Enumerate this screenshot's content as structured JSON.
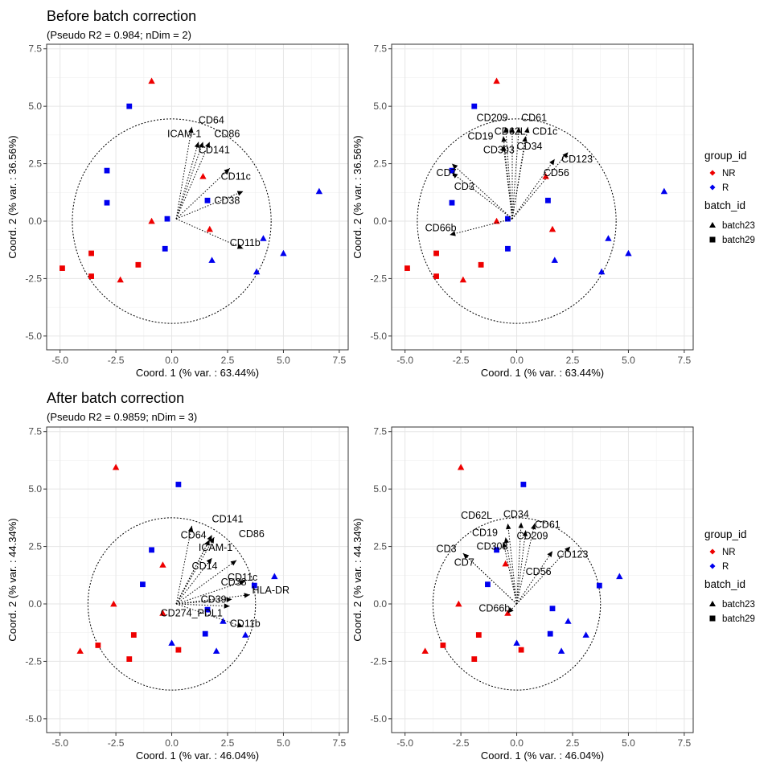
{
  "sections": [
    {
      "title": "Before batch correction",
      "subtitle": "(Pseudo R2 = 0.984; nDim = 2)"
    },
    {
      "title": "After batch correction",
      "subtitle": "(Pseudo R2 = 0.9859; nDim = 3)"
    }
  ],
  "legend": {
    "group_title": "group_id",
    "group_items": [
      {
        "label": "NR",
        "color": "#ee0000"
      },
      {
        "label": "R",
        "color": "#0000ee"
      }
    ],
    "batch_title": "batch_id",
    "batch_items": [
      {
        "label": "batch23",
        "shape": "triangle"
      },
      {
        "label": "batch29",
        "shape": "square"
      }
    ]
  },
  "chart_data": [
    {
      "type": "scatter",
      "xlabel": "Coord. 1 (% var. : 63.44%)",
      "ylabel": "Coord. 2 (% var. : 36.56%)",
      "xlim": [
        -5.6,
        7.9
      ],
      "ylim": [
        -5.6,
        7.7
      ],
      "xticks": [
        -5.0,
        -2.5,
        0.0,
        2.5,
        5.0,
        7.5
      ],
      "yticks": [
        -5.0,
        -2.5,
        0.0,
        2.5,
        5.0,
        7.5
      ],
      "circle": {
        "cx": 0,
        "cy": 0,
        "r": 4.45
      },
      "origin": [
        0.2,
        0.1
      ],
      "points": [
        [
          -0.9,
          6.1,
          "NR",
          "batch23"
        ],
        [
          -1.9,
          5.0,
          "R",
          "batch29"
        ],
        [
          -2.9,
          2.2,
          "R",
          "batch29"
        ],
        [
          -2.9,
          0.8,
          "R",
          "batch29"
        ],
        [
          -0.9,
          0.0,
          "NR",
          "batch23"
        ],
        [
          -0.2,
          0.1,
          "R",
          "batch29"
        ],
        [
          1.4,
          1.95,
          "NR",
          "batch23"
        ],
        [
          1.6,
          0.9,
          "R",
          "batch29"
        ],
        [
          1.7,
          -0.35,
          "NR",
          "batch23"
        ],
        [
          1.8,
          -1.7,
          "R",
          "batch23"
        ],
        [
          -4.9,
          -2.05,
          "NR",
          "batch29"
        ],
        [
          -3.6,
          -1.4,
          "NR",
          "batch29"
        ],
        [
          -3.6,
          -2.4,
          "NR",
          "batch29"
        ],
        [
          -2.3,
          -2.55,
          "NR",
          "batch23"
        ],
        [
          -1.5,
          -1.9,
          "NR",
          "batch29"
        ],
        [
          -0.3,
          -1.2,
          "R",
          "batch29"
        ],
        [
          3.8,
          -2.2,
          "R",
          "batch23"
        ],
        [
          4.1,
          -0.75,
          "R",
          "batch23"
        ],
        [
          5.0,
          -1.4,
          "R",
          "batch23"
        ],
        [
          6.6,
          1.3,
          "R",
          "batch23"
        ]
      ],
      "arrows": [
        {
          "label": "CD64",
          "end": [
            0.9,
            4.1
          ],
          "lx": 1.2,
          "ly": 4.4
        },
        {
          "label": "ICAM-1",
          "end": [
            1.2,
            3.45
          ],
          "lx": -0.2,
          "ly": 3.8
        },
        {
          "label": "CD86",
          "end": [
            1.7,
            3.45
          ],
          "lx": 1.9,
          "ly": 3.8
        },
        {
          "label": "CD141",
          "end": [
            1.4,
            3.45
          ],
          "lx": 1.2,
          "ly": 3.1
        },
        {
          "label": "CD11c",
          "end": [
            2.6,
            2.3
          ],
          "lx": 2.2,
          "ly": 1.95
        },
        {
          "label": "CD38",
          "end": [
            3.2,
            1.3
          ],
          "lx": 1.9,
          "ly": 0.9
        },
        {
          "label": "CD11b",
          "end": [
            3.2,
            -1.2
          ],
          "lx": 2.6,
          "ly": -0.95
        }
      ]
    },
    {
      "type": "scatter",
      "xlabel": "Coord. 1 (% var. : 63.44%)",
      "ylabel": "Coord. 2 (% var. : 36.56%)",
      "xlim": [
        -5.6,
        7.9
      ],
      "ylim": [
        -5.6,
        7.7
      ],
      "xticks": [
        -5.0,
        -2.5,
        0.0,
        2.5,
        5.0,
        7.5
      ],
      "yticks": [
        -5.0,
        -2.5,
        0.0,
        2.5,
        5.0,
        7.5
      ],
      "circle": {
        "cx": 0,
        "cy": 0,
        "r": 4.45
      },
      "origin": [
        -0.2,
        0.1
      ],
      "points": [
        [
          -0.9,
          6.1,
          "NR",
          "batch23"
        ],
        [
          -1.9,
          5.0,
          "R",
          "batch29"
        ],
        [
          -2.9,
          2.2,
          "R",
          "batch29"
        ],
        [
          -2.9,
          0.8,
          "R",
          "batch29"
        ],
        [
          -0.9,
          0.0,
          "NR",
          "batch23"
        ],
        [
          -0.4,
          0.1,
          "R",
          "batch29"
        ],
        [
          1.3,
          1.95,
          "NR",
          "batch23"
        ],
        [
          1.4,
          0.9,
          "R",
          "batch29"
        ],
        [
          1.6,
          -0.35,
          "NR",
          "batch23"
        ],
        [
          1.7,
          -1.7,
          "R",
          "batch23"
        ],
        [
          -4.9,
          -2.05,
          "NR",
          "batch29"
        ],
        [
          -3.6,
          -1.4,
          "NR",
          "batch29"
        ],
        [
          -3.6,
          -2.4,
          "NR",
          "batch29"
        ],
        [
          -2.4,
          -2.55,
          "NR",
          "batch23"
        ],
        [
          -1.6,
          -1.9,
          "NR",
          "batch29"
        ],
        [
          -0.4,
          -1.2,
          "R",
          "batch29"
        ],
        [
          3.8,
          -2.2,
          "R",
          "batch23"
        ],
        [
          4.1,
          -0.75,
          "R",
          "batch23"
        ],
        [
          5.0,
          -1.4,
          "R",
          "batch23"
        ],
        [
          6.6,
          1.3,
          "R",
          "batch23"
        ]
      ],
      "arrows": [
        {
          "label": "CD209",
          "end": [
            -0.5,
            4.1
          ],
          "lx": -1.8,
          "ly": 4.5
        },
        {
          "label": "CD61",
          "end": [
            0.1,
            4.1
          ],
          "lx": 0.2,
          "ly": 4.5
        },
        {
          "label": "CD62L",
          "end": [
            -0.2,
            4.1
          ],
          "lx": -1.0,
          "ly": 3.9
        },
        {
          "label": "CD1c",
          "end": [
            0.5,
            4.1
          ],
          "lx": 0.7,
          "ly": 3.9
        },
        {
          "label": "CD19",
          "end": [
            -0.6,
            3.7
          ],
          "lx": -2.2,
          "ly": 3.7
        },
        {
          "label": "CD34",
          "end": [
            0.4,
            3.7
          ],
          "lx": 0.0,
          "ly": 3.25
        },
        {
          "label": "CD303",
          "end": [
            -0.6,
            3.3
          ],
          "lx": -1.5,
          "ly": 3.1
        },
        {
          "label": "CD123",
          "end": [
            2.3,
            3.0
          ],
          "lx": 2.0,
          "ly": 2.7
        },
        {
          "label": "CD56",
          "end": [
            1.7,
            2.7
          ],
          "lx": 1.2,
          "ly": 2.1
        },
        {
          "label": "CD7",
          "end": [
            -2.9,
            2.5
          ],
          "lx": -3.6,
          "ly": 2.1
        },
        {
          "label": "CD3",
          "end": [
            -2.9,
            2.1
          ],
          "lx": -2.8,
          "ly": 1.5
        },
        {
          "label": "CD66b",
          "end": [
            -3.0,
            -0.6
          ],
          "lx": -4.1,
          "ly": -0.3
        }
      ]
    },
    {
      "type": "scatter",
      "xlabel": "Coord. 1 (% var. : 46.04%)",
      "ylabel": "Coord. 2 (% var. : 44.34%)",
      "xlim": [
        -5.6,
        7.9
      ],
      "ylim": [
        -5.6,
        7.7
      ],
      "xticks": [
        -5.0,
        -2.5,
        0.0,
        2.5,
        5.0,
        7.5
      ],
      "yticks": [
        -5.0,
        -2.5,
        0.0,
        2.5,
        5.0,
        7.5
      ],
      "circle": {
        "cx": 0,
        "cy": 0,
        "r": 3.75
      },
      "origin": [
        0.2,
        0.0
      ],
      "points": [
        [
          -2.5,
          5.95,
          "NR",
          "batch23"
        ],
        [
          0.3,
          5.2,
          "R",
          "batch29"
        ],
        [
          -0.9,
          2.35,
          "R",
          "batch29"
        ],
        [
          -0.4,
          1.7,
          "NR",
          "batch23"
        ],
        [
          -1.3,
          0.85,
          "R",
          "batch29"
        ],
        [
          -2.6,
          0.0,
          "NR",
          "batch23"
        ],
        [
          -0.4,
          -0.4,
          "NR",
          "batch23"
        ],
        [
          1.6,
          -0.25,
          "R",
          "batch29"
        ],
        [
          2.3,
          -0.75,
          "R",
          "batch23"
        ],
        [
          3.3,
          -1.35,
          "R",
          "batch23"
        ],
        [
          4.6,
          1.2,
          "R",
          "batch23"
        ],
        [
          3.7,
          0.8,
          "R",
          "batch29"
        ],
        [
          1.5,
          -1.3,
          "R",
          "batch29"
        ],
        [
          2.0,
          -2.05,
          "R",
          "batch23"
        ],
        [
          0.3,
          -2.0,
          "NR",
          "batch29"
        ],
        [
          0.0,
          -1.7,
          "R",
          "batch23"
        ],
        [
          -1.7,
          -1.35,
          "NR",
          "batch29"
        ],
        [
          -1.9,
          -2.4,
          "NR",
          "batch29"
        ],
        [
          -3.3,
          -1.8,
          "NR",
          "batch29"
        ],
        [
          -4.1,
          -2.05,
          "NR",
          "batch23"
        ]
      ],
      "arrows": [
        {
          "label": "CD141",
          "end": [
            1.8,
            3.0
          ],
          "lx": 1.8,
          "ly": 3.7
        },
        {
          "label": "CD64",
          "end": [
            0.9,
            3.4
          ],
          "lx": 0.4,
          "ly": 3.0
        },
        {
          "label": "CD86",
          "end": [
            1.9,
            2.9
          ],
          "lx": 3.0,
          "ly": 3.05
        },
        {
          "label": "ICAM-1",
          "end": [
            1.7,
            2.8
          ],
          "lx": 1.2,
          "ly": 2.45
        },
        {
          "label": "CD14",
          "end": [
            1.8,
            2.0
          ],
          "lx": 0.9,
          "ly": 1.65
        },
        {
          "label": "CD11c",
          "end": [
            2.9,
            1.9
          ],
          "lx": 2.5,
          "ly": 1.15
        },
        {
          "label": "CD38",
          "end": [
            3.3,
            1.0
          ],
          "lx": 2.2,
          "ly": 0.95
        },
        {
          "label": "HLA-DR",
          "end": [
            3.5,
            0.4
          ],
          "lx": 3.6,
          "ly": 0.6
        },
        {
          "label": "CD39",
          "end": [
            2.7,
            0.2
          ],
          "lx": 1.3,
          "ly": 0.2
        },
        {
          "label": "CD274_PDL1",
          "end": [
            2.6,
            -0.1
          ],
          "lx": -0.5,
          "ly": -0.4
        },
        {
          "label": "CD11b",
          "end": [
            3.2,
            -1.0
          ],
          "lx": 2.6,
          "ly": -0.85
        }
      ]
    },
    {
      "type": "scatter",
      "xlabel": "Coord. 1 (% var. : 46.04%)",
      "ylabel": "Coord. 2 (% var. : 44.34%)",
      "xlim": [
        -5.6,
        7.9
      ],
      "ylim": [
        -5.6,
        7.7
      ],
      "xticks": [
        -5.0,
        -2.5,
        0.0,
        2.5,
        5.0,
        7.5
      ],
      "yticks": [
        -5.0,
        -2.5,
        0.0,
        2.5,
        5.0,
        7.5
      ],
      "circle": {
        "cx": 0,
        "cy": 0,
        "r": 3.75
      },
      "origin": [
        0.0,
        0.0
      ],
      "points": [
        [
          -2.5,
          5.95,
          "NR",
          "batch23"
        ],
        [
          0.3,
          5.2,
          "R",
          "batch29"
        ],
        [
          -0.9,
          2.35,
          "R",
          "batch29"
        ],
        [
          -0.5,
          1.75,
          "NR",
          "batch23"
        ],
        [
          -1.3,
          0.85,
          "R",
          "batch29"
        ],
        [
          -2.6,
          0.0,
          "NR",
          "batch23"
        ],
        [
          -0.4,
          -0.4,
          "NR",
          "batch23"
        ],
        [
          1.6,
          -0.2,
          "R",
          "batch29"
        ],
        [
          2.3,
          -0.75,
          "R",
          "batch23"
        ],
        [
          3.1,
          -1.35,
          "R",
          "batch23"
        ],
        [
          4.6,
          1.2,
          "R",
          "batch23"
        ],
        [
          3.7,
          0.8,
          "R",
          "batch29"
        ],
        [
          1.5,
          -1.3,
          "R",
          "batch29"
        ],
        [
          2.0,
          -2.05,
          "R",
          "batch23"
        ],
        [
          0.2,
          -2.0,
          "NR",
          "batch29"
        ],
        [
          0.0,
          -1.7,
          "R",
          "batch23"
        ],
        [
          -1.7,
          -1.35,
          "NR",
          "batch29"
        ],
        [
          -1.9,
          -2.4,
          "NR",
          "batch29"
        ],
        [
          -3.3,
          -1.8,
          "NR",
          "batch29"
        ],
        [
          -4.1,
          -2.05,
          "NR",
          "batch23"
        ]
      ],
      "arrows": [
        {
          "label": "CD62L",
          "end": [
            -0.4,
            3.5
          ],
          "lx": -2.5,
          "ly": 3.85
        },
        {
          "label": "CD34",
          "end": [
            0.2,
            3.55
          ],
          "lx": -0.6,
          "ly": 3.9
        },
        {
          "label": "CD61",
          "end": [
            0.8,
            3.5
          ],
          "lx": 0.8,
          "ly": 3.45
        },
        {
          "label": "CD19",
          "end": [
            -0.5,
            2.9
          ],
          "lx": -2.0,
          "ly": 3.1
        },
        {
          "label": "CD209",
          "end": [
            0.4,
            3.2
          ],
          "lx": 0.0,
          "ly": 2.95
        },
        {
          "label": "CD303",
          "end": [
            -0.6,
            2.7
          ],
          "lx": -1.8,
          "ly": 2.5
        },
        {
          "label": "CD3",
          "end": [
            -2.4,
            2.2
          ],
          "lx": -3.6,
          "ly": 2.4
        },
        {
          "label": "CD7",
          "end": [
            -2.4,
            2.2
          ],
          "lx": -2.8,
          "ly": 1.8
        },
        {
          "label": "CD123",
          "end": [
            2.4,
            2.5
          ],
          "lx": 1.8,
          "ly": 2.15
        },
        {
          "label": "CD56",
          "end": [
            1.6,
            2.3
          ],
          "lx": 0.4,
          "ly": 1.4
        },
        {
          "label": "CD66b",
          "end": [
            -0.4,
            -0.4
          ],
          "lx": -1.7,
          "ly": -0.2
        }
      ]
    }
  ]
}
